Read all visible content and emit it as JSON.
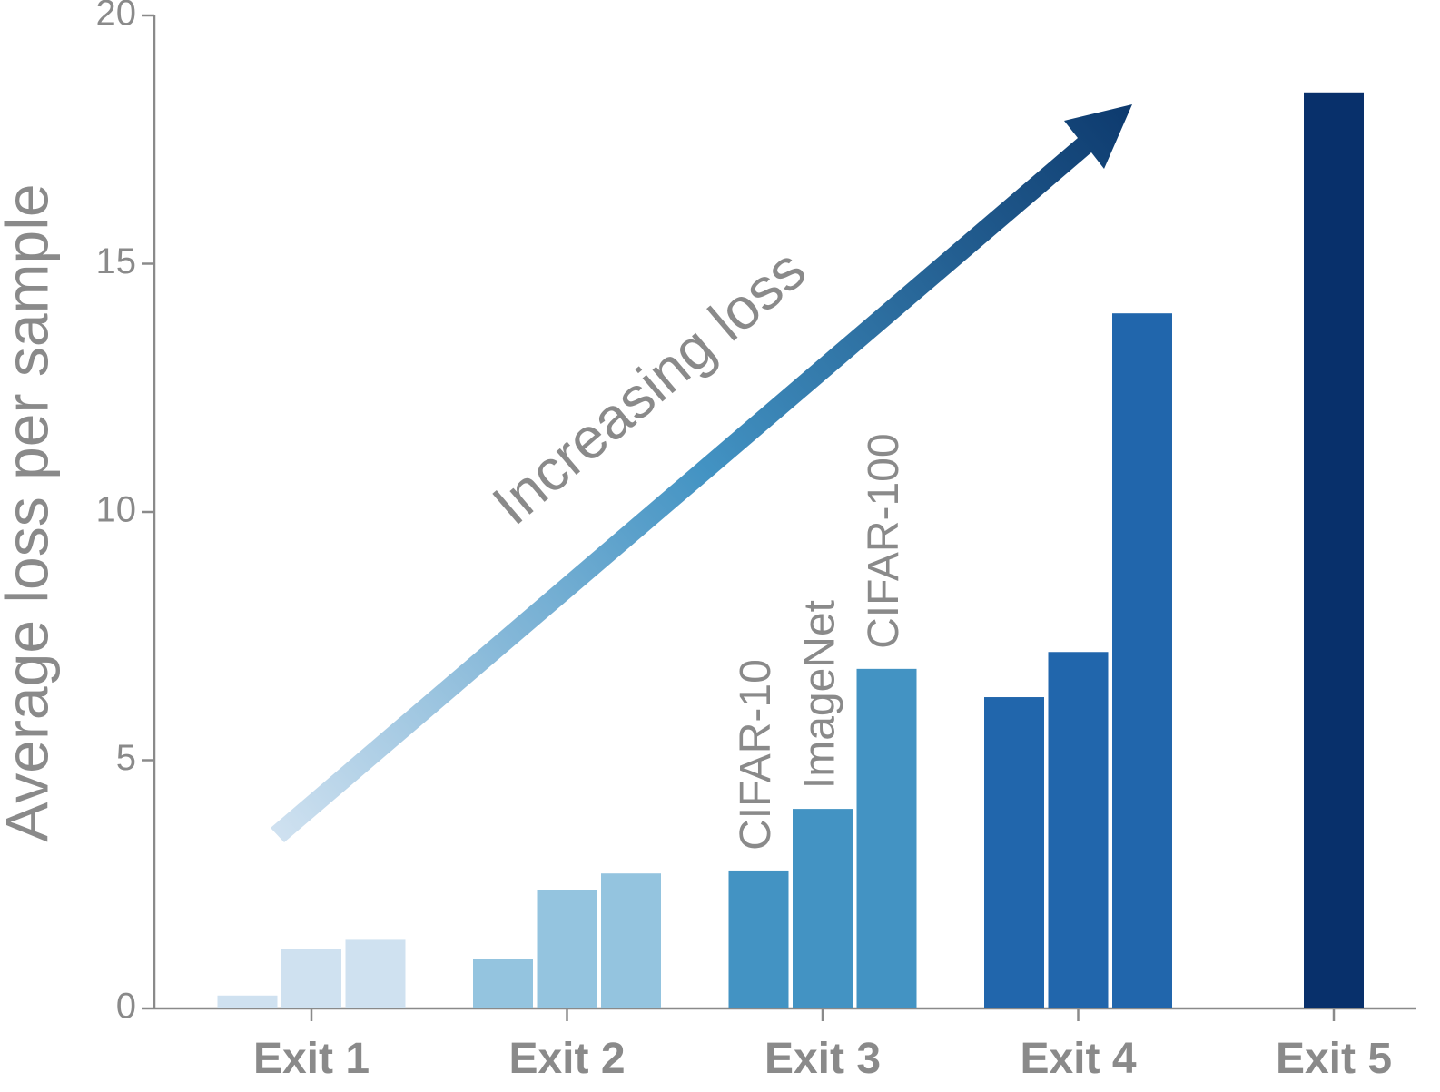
{
  "chart_data": {
    "type": "bar",
    "y_label": "Average loss per sample",
    "annotation": "Increasing loss",
    "categories": [
      "Exit 1",
      "Exit 2",
      "Exit 3",
      "Exit 4",
      "Exit 5"
    ],
    "category_colors": [
      "#cfe1f0",
      "#94c4df",
      "#4393c3",
      "#2166ac",
      "#08306b"
    ],
    "series": [
      {
        "name": "CIFAR-10",
        "values": [
          0.26,
          0.99,
          2.78,
          6.27,
          null
        ]
      },
      {
        "name": "ImageNet",
        "values": [
          1.2,
          2.38,
          4.02,
          7.18,
          null
        ]
      },
      {
        "name": "CIFAR-100",
        "values": [
          1.4,
          2.72,
          6.84,
          14.0,
          18.45
        ]
      }
    ],
    "ylim": [
      0,
      20
    ],
    "yticks": [
      0,
      5,
      10,
      15,
      20
    ]
  }
}
